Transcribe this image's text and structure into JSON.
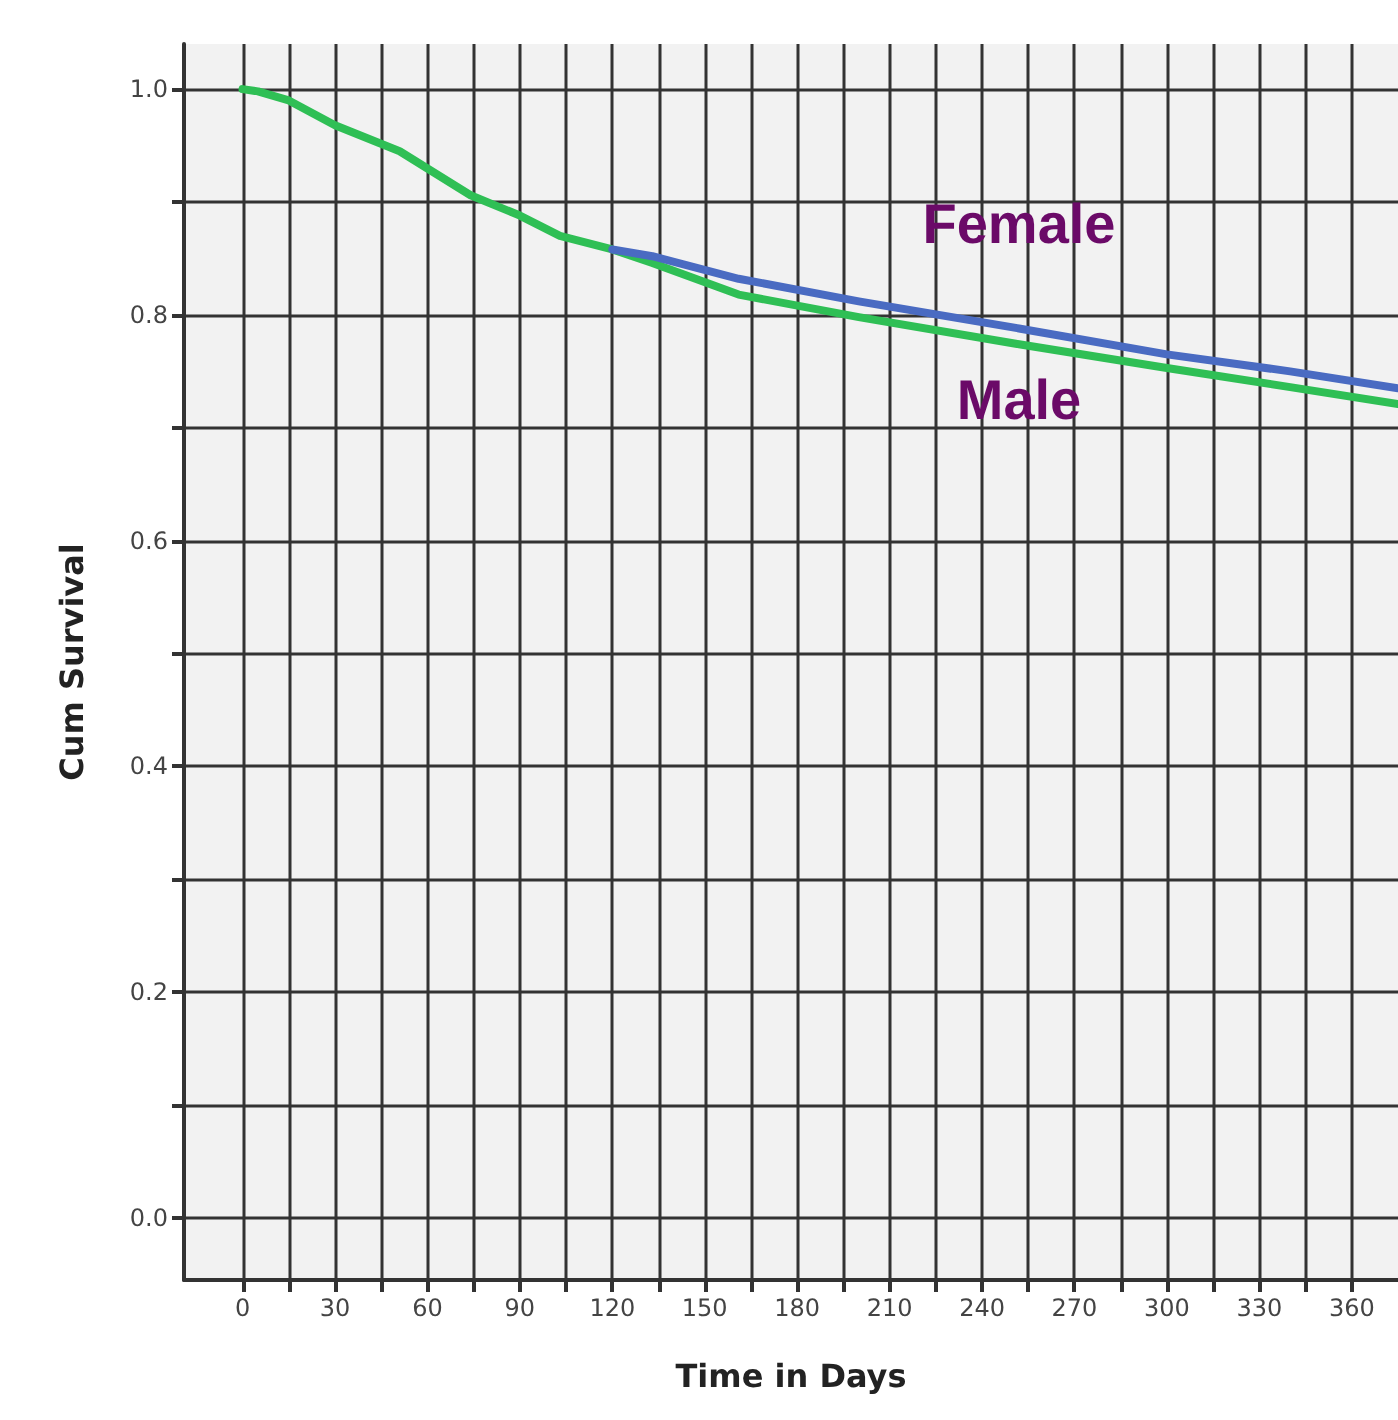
{
  "chart_data": {
    "type": "line",
    "xlabel": "Time in Days",
    "ylabel": "Cum Survival",
    "xlim": [
      -19,
      375
    ],
    "ylim": [
      -0.055,
      1.04
    ],
    "xticks": [
      0,
      {
        "value": 15,
        "label": null
      },
      30,
      {
        "value": 45,
        "label": null
      },
      60,
      {
        "value": 75,
        "label": null
      },
      90,
      {
        "value": 105,
        "label": null
      },
      120,
      {
        "value": 135,
        "label": null
      },
      150,
      {
        "value": 165,
        "label": null
      },
      180,
      {
        "value": 195,
        "label": null
      },
      210,
      {
        "value": 225,
        "label": null
      },
      240,
      {
        "value": 255,
        "label": null
      },
      270,
      {
        "value": 285,
        "label": null
      },
      300,
      {
        "value": 315,
        "label": null
      },
      330,
      {
        "value": 345,
        "label": null
      },
      360
    ],
    "yticks": [
      {
        "value": 0,
        "label": "0.0"
      },
      {
        "value": 0.1,
        "label": null
      },
      0.2,
      {
        "value": 0.3,
        "label": null
      },
      0.4,
      {
        "value": 0.5,
        "label": null
      },
      0.6,
      {
        "value": 0.7,
        "label": null
      },
      0.8,
      {
        "value": 0.9,
        "label": null
      },
      {
        "value": 1,
        "label": "1.0"
      }
    ],
    "x": [
      0,
      5,
      15,
      30,
      51,
      74,
      90,
      103,
      120,
      133,
      161,
      200,
      252,
      300,
      340,
      375
    ],
    "series": [
      {
        "name": "Female",
        "color": "#4a6bc2",
        "values": [
          null,
          null,
          null,
          null,
          null,
          null,
          null,
          null,
          0.858,
          0.852,
          0.832,
          0.812,
          0.788,
          0.765,
          0.75,
          0.735
        ]
      },
      {
        "name": "Male",
        "color": "#2fbf55",
        "values": [
          1.0,
          0.998,
          0.99,
          0.968,
          0.945,
          0.906,
          0.888,
          0.87,
          0.858,
          0.846,
          0.818,
          0.798,
          0.774,
          0.753,
          0.736,
          0.721
        ]
      }
    ],
    "grid": true,
    "marker": "none",
    "line_style": "solid"
  }
}
